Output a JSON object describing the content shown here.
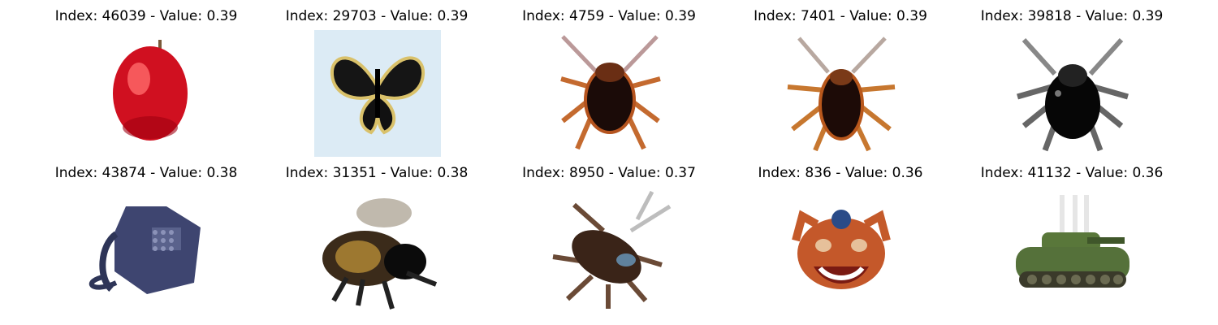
{
  "tiles": [
    {
      "title": "Index: 46039 - Value: 0.39",
      "subject": "red-apple"
    },
    {
      "title": "Index: 29703 - Value: 0.39",
      "subject": "butterfly"
    },
    {
      "title": "Index: 4759 - Value: 0.39",
      "subject": "cockroach"
    },
    {
      "title": "Index: 7401 - Value: 0.39",
      "subject": "cockroach"
    },
    {
      "title": "Index: 39818 - Value: 0.39",
      "subject": "spider-beetle"
    },
    {
      "title": "Index: 43874 - Value: 0.38",
      "subject": "telephone"
    },
    {
      "title": "Index: 31351 - Value: 0.38",
      "subject": "bee"
    },
    {
      "title": "Index: 8950 - Value: 0.37",
      "subject": "cockroach"
    },
    {
      "title": "Index: 836 - Value: 0.36",
      "subject": "crab-mask"
    },
    {
      "title": "Index: 41132 - Value: 0.36",
      "subject": "tank"
    }
  ]
}
